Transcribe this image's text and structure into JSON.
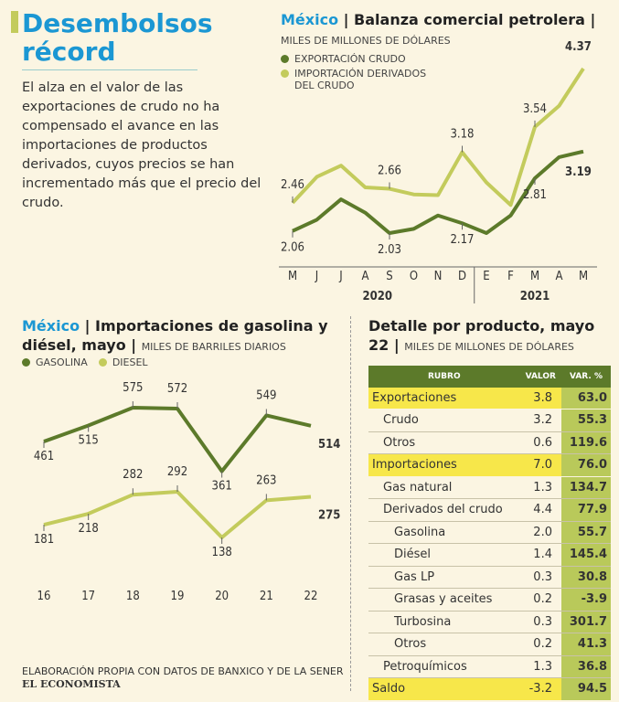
{
  "header": {
    "title": "Desembolsos récord",
    "intro": "El alza en el valor de las exportaciones de crudo no ha compensado el avance en las importaciones de productos derivados, cuyos precios se han incrementado más que el precio del crudo."
  },
  "chart_data": [
    {
      "type": "line",
      "region": "México",
      "title": "Balanza comercial petrolera",
      "unit": "MILES DE MILLONES DE DÓLARES",
      "categories": [
        "M",
        "J",
        "J",
        "A",
        "S",
        "O",
        "N",
        "D",
        "E",
        "F",
        "M",
        "A",
        "M"
      ],
      "groups": [
        {
          "label": "2020",
          "from": 0,
          "to": 7
        },
        {
          "label": "2021",
          "from": 8,
          "to": 12
        }
      ],
      "series": [
        {
          "name": "EXPORTACIÓN CRUDO",
          "color": "#5c7a2a",
          "values": [
            2.06,
            2.22,
            2.51,
            2.32,
            2.03,
            2.09,
            2.28,
            2.17,
            2.03,
            2.28,
            2.81,
            3.11,
            3.19
          ],
          "value_labels": [
            "2.06",
            null,
            null,
            null,
            "2.03",
            null,
            null,
            "2.17",
            null,
            null,
            "2.81",
            null,
            "3.19"
          ]
        },
        {
          "name": "IMPORTACIÓN DERIVADOS DEL CRUDO",
          "color": "#c3cb5c",
          "values": [
            2.46,
            2.83,
            2.99,
            2.68,
            2.66,
            2.58,
            2.57,
            3.18,
            2.75,
            2.43,
            3.54,
            3.84,
            4.37
          ],
          "value_labels": [
            "2.46",
            null,
            null,
            null,
            "2.66",
            null,
            null,
            "3.18",
            null,
            null,
            "3.54",
            null,
            "4.37"
          ]
        }
      ]
    },
    {
      "type": "line",
      "region": "México",
      "title": "Importaciones de  gasolina y diésel, mayo",
      "unit": "MILES DE BARRILES DIARIOS",
      "categories": [
        "16",
        "17",
        "18",
        "19",
        "20",
        "21",
        "22"
      ],
      "series": [
        {
          "name": "GASOLINA",
          "color": "#5c7a2a",
          "values": [
            461,
            515,
            575,
            572,
            361,
            549,
            514
          ]
        },
        {
          "name": "DIESEL",
          "color": "#c3cb5c",
          "values": [
            181,
            218,
            282,
            292,
            138,
            263,
            275
          ]
        }
      ]
    }
  ],
  "table": {
    "title": "Detalle por producto, mayo 22",
    "unit": "MILES DE MILLONES DE DÓLARES",
    "columns": [
      "RUBRO",
      "VALOR",
      "VAR. %"
    ],
    "rows": [
      {
        "label": "Exportaciones",
        "value": "3.8",
        "var": "63.0",
        "indent": 0
      },
      {
        "label": "Crudo",
        "value": "3.2",
        "var": "55.3",
        "indent": 1
      },
      {
        "label": "Otros",
        "value": "0.6",
        "var": "119.6",
        "indent": 1
      },
      {
        "label": "Importaciones",
        "value": "7.0",
        "var": "76.0",
        "indent": 0
      },
      {
        "label": "Gas natural",
        "value": "1.3",
        "var": "134.7",
        "indent": 1
      },
      {
        "label": "Derivados del crudo",
        "value": "4.4",
        "var": "77.9",
        "indent": 1
      },
      {
        "label": "Gasolina",
        "value": "2.0",
        "var": "55.7",
        "indent": 2
      },
      {
        "label": "Diésel",
        "value": "1.4",
        "var": "145.4",
        "indent": 2
      },
      {
        "label": "Gas LP",
        "value": "0.3",
        "var": "30.8",
        "indent": 2
      },
      {
        "label": "Grasas y aceites",
        "value": "0.2",
        "var": "-3.9",
        "indent": 2
      },
      {
        "label": "Turbosina",
        "value": "0.3",
        "var": "301.7",
        "indent": 2
      },
      {
        "label": "Otros",
        "value": "0.2",
        "var": "41.3",
        "indent": 2
      },
      {
        "label": "Petroquímicos",
        "value": "1.3",
        "var": "36.8",
        "indent": 1
      },
      {
        "label": "Saldo",
        "value": "-3.2",
        "var": "94.5",
        "indent": 0
      }
    ]
  },
  "footer": {
    "source": "ELABORACIÓN PROPIA CON DATOS DE BANXICO Y DE LA SENER",
    "brand": "EL ECONOMISTA"
  }
}
